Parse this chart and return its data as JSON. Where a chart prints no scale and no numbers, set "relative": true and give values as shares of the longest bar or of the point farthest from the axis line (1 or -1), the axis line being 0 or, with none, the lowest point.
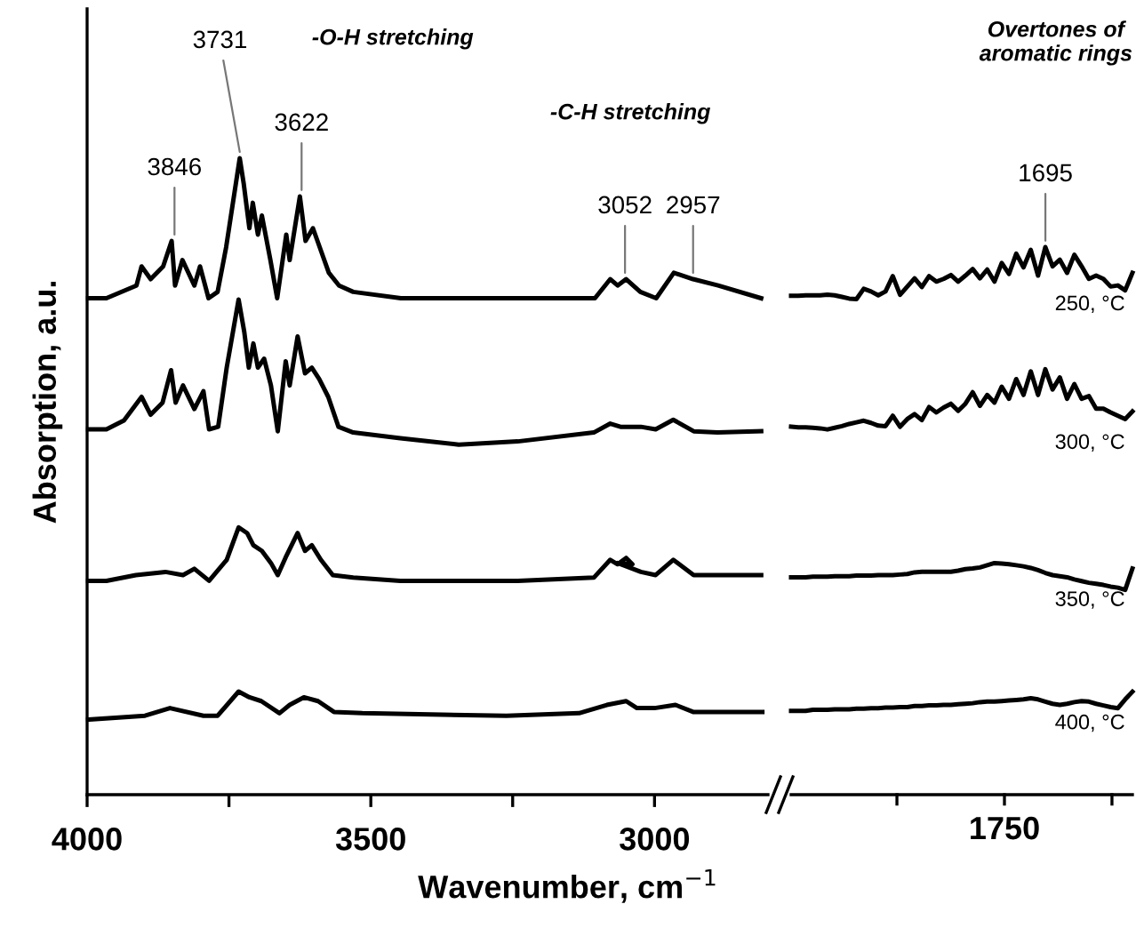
{
  "chart_data": [
    {
      "type": "line",
      "relative": true,
      "ylabel": "Absorption, a.u.",
      "xlabel": "Wavenumber, cm$^{−1}$",
      "xlim": [
        4000,
        2800
      ],
      "xticks": [
        4000,
        {
          "value": 3750,
          "label": null
        },
        3500,
        {
          "value": 3250,
          "label": null
        },
        3000
      ],
      "tick_labels": "x",
      "grid": false,
      "legend": false,
      "marker": "none",
      "line_style": "solid",
      "annotations": [
        "-O-H stretching",
        "-C-H stretching",
        {
          "text": "3846",
          "x": 3846,
          "y": 0.87
        },
        {
          "text": "3731",
          "x": 3731,
          "y": 1.0
        },
        {
          "text": "3622",
          "x": 3622,
          "y": 0.94
        },
        {
          "text": "3052",
          "x": 3052,
          "y": 0.81
        },
        {
          "text": "2957",
          "x": 2932,
          "y": 0.81
        }
      ],
      "series": [
        {
          "color": "#000000",
          "x": [
            3998,
            3966,
            3913,
            3904,
            3888,
            3866,
            3851,
            3845,
            3832,
            3811,
            3801,
            3786,
            3770,
            3755,
            3731,
            3724,
            3714,
            3708,
            3699,
            3692,
            3677,
            3665,
            3649,
            3643,
            3625,
            3615,
            3602,
            3590,
            3574,
            3556,
            3531,
            3447,
            3345,
            3242,
            3105,
            3078,
            3065,
            3050,
            3025,
            2997,
            2966,
            2932,
            2888,
            2812
          ],
          "values": [
            0.78,
            0.78,
            0.8,
            0.83,
            0.81,
            0.83,
            0.87,
            0.8,
            0.84,
            0.8,
            0.83,
            0.78,
            0.79,
            0.86,
            1.0,
            0.96,
            0.89,
            0.93,
            0.88,
            0.91,
            0.84,
            0.78,
            0.88,
            0.84,
            0.94,
            0.87,
            0.89,
            0.86,
            0.82,
            0.8,
            0.79,
            0.78,
            0.78,
            0.78,
            0.78,
            0.81,
            0.8,
            0.81,
            0.79,
            0.78,
            0.82,
            0.81,
            0.8,
            0.78
          ]
        },
        {
          "color": "#000000",
          "x": [
            3998,
            3966,
            3935,
            3904,
            3888,
            3867,
            3852,
            3844,
            3831,
            3811,
            3795,
            3785,
            3769,
            3754,
            3733,
            3723,
            3715,
            3707,
            3699,
            3688,
            3676,
            3664,
            3650,
            3643,
            3629,
            3616,
            3604,
            3591,
            3575,
            3557,
            3531,
            3448,
            3345,
            3241,
            3107,
            3078,
            3060,
            3039,
            3024,
            2998,
            2967,
            2931,
            2889,
            2812
          ],
          "values": [
            0.574,
            0.574,
            0.588,
            0.625,
            0.597,
            0.616,
            0.667,
            0.616,
            0.643,
            0.606,
            0.634,
            0.574,
            0.578,
            0.671,
            0.778,
            0.727,
            0.671,
            0.709,
            0.671,
            0.685,
            0.643,
            0.571,
            0.681,
            0.643,
            0.72,
            0.662,
            0.671,
            0.653,
            0.625,
            0.578,
            0.569,
            0.56,
            0.55,
            0.555,
            0.569,
            0.583,
            0.578,
            0.578,
            0.578,
            0.574,
            0.589,
            0.571,
            0.569,
            0.571
          ]
        },
        {
          "color": "#000000",
          "x": [
            3998,
            3966,
            3914,
            3862,
            3831,
            3811,
            3785,
            3754,
            3733,
            3718,
            3707,
            3692,
            3676,
            3664,
            3650,
            3629,
            3616,
            3604,
            3588,
            3567,
            3531,
            3448,
            3345,
            3241,
            3107,
            3078,
            3065,
            3050,
            3039,
            3065,
            3024,
            2998,
            2967,
            2931,
            2889,
            2812
          ],
          "values": [
            0.336,
            0.336,
            0.345,
            0.35,
            0.345,
            0.355,
            0.336,
            0.369,
            0.42,
            0.411,
            0.392,
            0.383,
            0.364,
            0.345,
            0.373,
            0.411,
            0.383,
            0.392,
            0.369,
            0.345,
            0.341,
            0.336,
            0.336,
            0.336,
            0.341,
            0.369,
            0.362,
            0.372,
            0.362,
            0.364,
            0.35,
            0.345,
            0.369,
            0.345,
            0.345,
            0.345
          ]
        },
        {
          "color": "#000000",
          "x": [
            3998,
            3898,
            3854,
            3795,
            3770,
            3733,
            3714,
            3693,
            3661,
            3643,
            3618,
            3593,
            3565,
            3515,
            3261,
            3133,
            3084,
            3050,
            3031,
            3000,
            2963,
            2932,
            2810
          ],
          "values": [
            0.118,
            0.124,
            0.136,
            0.124,
            0.124,
            0.162,
            0.153,
            0.147,
            0.128,
            0.141,
            0.153,
            0.147,
            0.13,
            0.128,
            0.124,
            0.128,
            0.141,
            0.147,
            0.136,
            0.136,
            0.141,
            0.13,
            0.13
          ]
        }
      ]
    },
    {
      "type": "line",
      "relative": true,
      "tick_labels": "x",
      "grid": false,
      "legend": false,
      "marker": "none",
      "line_style": "solid",
      "annotations": [
        "Overtones of\naromatic rings",
        "1695",
        "1750"
      ],
      "categories": [
        null,
        null,
        null,
        null,
        null,
        null,
        null,
        null,
        null,
        null,
        null,
        null,
        null,
        null,
        null,
        null,
        null,
        null,
        null,
        null,
        null,
        null,
        null,
        null,
        null,
        null,
        null,
        null,
        null,
        null,
        null,
        null,
        null,
        null,
        null,
        null,
        null,
        null,
        null,
        null,
        null,
        null,
        null,
        null,
        null,
        null,
        null,
        null
      ],
      "series": [
        {
          "name": "250, °C",
          "color": "#000000",
          "values": [
            0.911,
            0.911,
            0.912,
            0.912,
            0.912,
            0.913,
            0.912,
            0.909,
            0.906,
            0.905,
            0.924,
            0.919,
            0.912,
            0.919,
            0.947,
            0.913,
            0.928,
            0.943,
            0.927,
            0.947,
            0.937,
            0.942,
            0.949,
            0.937,
            0.948,
            0.96,
            0.943,
            0.959,
            0.937,
            0.971,
            0.951,
            0.988,
            0.963,
            0.995,
            0.948,
            1.0,
            0.965,
            0.977,
            0.953,
            0.986,
            0.965,
            0.942,
            0.948,
            0.942,
            0.928,
            0.93,
            0.921,
            0.953
          ]
        },
        {
          "name": "300, °C",
          "color": "#000000",
          "values": [
            0.672,
            0.671,
            0.671,
            0.67,
            0.669,
            0.667,
            0.67,
            0.673,
            0.677,
            0.68,
            0.683,
            0.679,
            0.674,
            0.673,
            0.692,
            0.672,
            0.686,
            0.695,
            0.684,
            0.708,
            0.698,
            0.707,
            0.714,
            0.701,
            0.714,
            0.735,
            0.71,
            0.73,
            0.716,
            0.745,
            0.723,
            0.759,
            0.73,
            0.773,
            0.73,
            0.777,
            0.74,
            0.762,
            0.723,
            0.75,
            0.723,
            0.728,
            0.705,
            0.705,
            0.698,
            0.692,
            0.686,
            0.7
          ]
        },
        {
          "name": "350, °C",
          "color": "#000000",
          "values": [
            0.397,
            0.397,
            0.397,
            0.398,
            0.398,
            0.398,
            0.399,
            0.399,
            0.399,
            0.4,
            0.4,
            0.4,
            0.401,
            0.401,
            0.401,
            0.402,
            0.403,
            0.406,
            0.407,
            0.407,
            0.407,
            0.407,
            0.407,
            0.409,
            0.412,
            0.413,
            0.415,
            0.419,
            0.423,
            0.422,
            0.421,
            0.419,
            0.417,
            0.414,
            0.41,
            0.405,
            0.401,
            0.399,
            0.397,
            0.393,
            0.39,
            0.387,
            0.385,
            0.383,
            0.38,
            0.378,
            0.374,
            0.413
          ]
        },
        {
          "name": "400, °C",
          "color": "#000000",
          "values": [
            0.153,
            0.153,
            0.153,
            0.155,
            0.155,
            0.155,
            0.156,
            0.156,
            0.156,
            0.157,
            0.157,
            0.158,
            0.158,
            0.159,
            0.159,
            0.16,
            0.16,
            0.162,
            0.162,
            0.163,
            0.163,
            0.164,
            0.164,
            0.165,
            0.166,
            0.167,
            0.169,
            0.17,
            0.17,
            0.171,
            0.172,
            0.173,
            0.174,
            0.176,
            0.174,
            0.17,
            0.166,
            0.164,
            0.166,
            0.169,
            0.171,
            0.17,
            0.166,
            0.163,
            0.16,
            0.158,
            0.174,
            0.188
          ]
        }
      ]
    }
  ]
}
